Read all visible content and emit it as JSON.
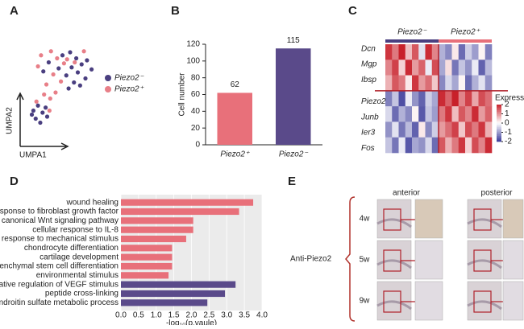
{
  "panels": [
    "A",
    "B",
    "C",
    "D",
    "E"
  ],
  "chart_data": [
    {
      "type": "scatter",
      "xlabel": "UMPA1",
      "ylabel": "UMPA2",
      "xlim": [
        0,
        10
      ],
      "ylim": [
        0,
        10
      ],
      "series": [
        {
          "name": "Piezo2⁻",
          "color": "#4a3f80",
          "x": [
            5,
            6,
            6.8,
            7.5,
            8.2,
            7,
            6.2,
            5.5,
            8,
            7.3,
            6.5,
            4.5,
            3.2,
            2.5,
            8.8,
            5.8,
            1.2,
            1.8,
            2.4,
            1.5,
            2.8,
            2.1,
            3,
            1
          ],
          "values": [
            8.5,
            8.8,
            8.2,
            7.6,
            8,
            6.8,
            7.3,
            6.5,
            6.2,
            5.5,
            5.8,
            7.2,
            7.8,
            6.9,
            7.1,
            5.2,
            3,
            3.5,
            2.8,
            2.2,
            3.3,
            1.8,
            2.4,
            2.6
          ]
        },
        {
          "name": "Piezo2⁺",
          "color": "#e87f88",
          "x": [
            3.5,
            4.3,
            2.2,
            5.2,
            3.8,
            2.9,
            4.8,
            6.6,
            1.8,
            4.1,
            3.4,
            2.6,
            1.6,
            3.3,
            7.8,
            5.6
          ],
          "values": [
            8.9,
            8.2,
            8.5,
            7.7,
            6.6,
            5.6,
            5.9,
            7.8,
            7.4,
            4.8,
            4.2,
            4.6,
            3.9,
            3,
            8.9,
            8.1
          ]
        }
      ]
    },
    {
      "type": "bar",
      "ylabel": "Cell number",
      "categories": [
        "Piezo2⁺",
        "Piezo2⁻"
      ],
      "values": [
        62,
        115
      ],
      "colors": [
        "#e8707a",
        "#5a4a8a"
      ],
      "ylim": [
        0,
        120
      ],
      "yticks": [
        0,
        20,
        40,
        60,
        80,
        100,
        120
      ]
    },
    {
      "type": "heatmap",
      "rows": [
        "Dcn",
        "Mgp",
        "Ibsp",
        "Piezo2",
        "Junb",
        "Ier3",
        "Fos"
      ],
      "groups": [
        {
          "name": "Piezo2⁻",
          "color": "#4a3f80"
        },
        {
          "name": "Piezo2⁺",
          "color": "#e8707a"
        }
      ],
      "legend_title": "Expression",
      "clim": [
        -2,
        2
      ],
      "colorbar_ticks": [
        2,
        1,
        0,
        -1,
        -2
      ],
      "values": [
        [
          1.8,
          1.2,
          2,
          0.6,
          1.5,
          -0.3,
          1.9,
          1.1,
          -0.8,
          -1.2,
          0.2,
          -1.5,
          -0.5,
          -1,
          0.1,
          -1.3
        ],
        [
          1.1,
          1.7,
          0.4,
          1.9,
          0.9,
          1.4,
          -0.2,
          1.6,
          -0.9,
          0.3,
          -1.4,
          -0.6,
          -1.1,
          -0.2,
          -1.6,
          -0.7
        ],
        [
          0.7,
          1.5,
          1.2,
          0.2,
          1.8,
          0.9,
          1.3,
          0.5,
          -1.2,
          -0.4,
          -0.9,
          0.1,
          -1.5,
          -0.8,
          -0.3,
          -1.1
        ],
        [
          -1.3,
          -0.6,
          -1.8,
          -0.2,
          -1.1,
          -1.6,
          -0.5,
          -0.9,
          1.9,
          1.4,
          2,
          1.1,
          1.7,
          0.8,
          1.6,
          1.3
        ],
        [
          -0.4,
          -1.5,
          -0.8,
          -1.2,
          0.1,
          -1.7,
          -0.6,
          -1,
          1.2,
          1.8,
          0.6,
          1.5,
          1.1,
          1.9,
          0.9,
          1.4
        ],
        [
          -1.1,
          -0.3,
          -1.4,
          -0.7,
          -1.6,
          0.2,
          -1.2,
          -0.5,
          0.9,
          1.3,
          1.7,
          0.5,
          1.6,
          1.2,
          1.8,
          0.7
        ],
        [
          -0.6,
          -1.4,
          -0.2,
          -1.7,
          -0.9,
          -1.1,
          -0.4,
          -1.5,
          1.5,
          0.7,
          1.2,
          1.8,
          0.4,
          1.6,
          1.1,
          1.9
        ]
      ]
    },
    {
      "type": "hbar",
      "xlabel": "-log₁₀(p.vaule)",
      "categories": [
        "wound healing",
        "response to fibroblast growth factor",
        "canonical Wnt signaling pathway",
        "cellular response to IL-8",
        "response to mechanical stimulus",
        "chondrocyte differentiation",
        "cartilage development",
        "mesenchymal stem cell differentiation",
        "environmental stimulus",
        "negative regulation of VEGF stimulus",
        "peptide cross-linking",
        "chondroitin sulfate metabolic process"
      ],
      "values": [
        3.75,
        3.35,
        2.05,
        2.05,
        1.85,
        1.45,
        1.45,
        1.45,
        1.35,
        3.25,
        2.95,
        2.45
      ],
      "colors": [
        "#e8707a",
        "#e8707a",
        "#e8707a",
        "#e8707a",
        "#e8707a",
        "#e8707a",
        "#e8707a",
        "#e8707a",
        "#e8707a",
        "#5a4a8a",
        "#5a4a8a",
        "#5a4a8a"
      ],
      "xlim": [
        0,
        4
      ],
      "xticks": [
        {
          "value": 0,
          "label": "0.0"
        },
        0.5,
        {
          "value": 1,
          "label": "1.0"
        },
        1.5,
        {
          "value": 2,
          "label": "2.0"
        },
        2.5,
        {
          "value": 3,
          "label": "3.0"
        },
        3.5,
        {
          "value": 4,
          "label": "4.0"
        }
      ]
    }
  ],
  "ihc": {
    "columns": [
      "anterior",
      "posterior"
    ],
    "rows": [
      "4w",
      "5w",
      "9w"
    ],
    "label": "Anti-Piezo2"
  }
}
